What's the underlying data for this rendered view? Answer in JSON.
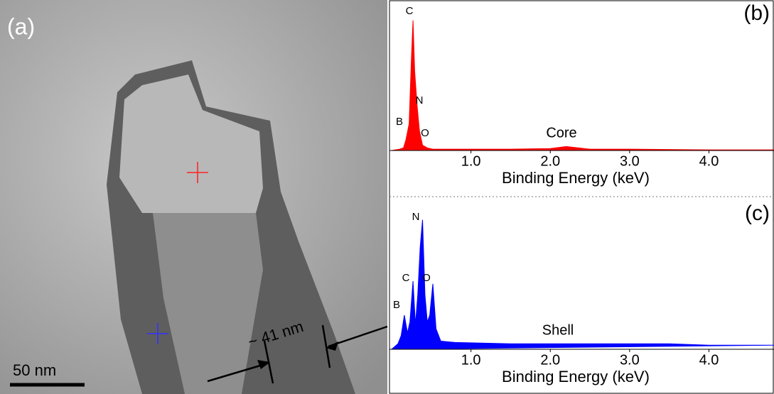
{
  "image": {
    "label": "(a)",
    "measurement": "~ 41 nm",
    "scale_bar": "50 nm"
  },
  "chart_data": [
    {
      "type": "area",
      "panel_label": "(b)",
      "spectrum_label": "Core",
      "x_label": "Binding Energy (keV)",
      "color": "#ff0000",
      "xlim": [
        0,
        4.82
      ],
      "ylim": [
        0,
        100
      ],
      "xticks": [
        {
          "value": 1,
          "label": "1.0"
        },
        {
          "value": 2,
          "label": "2.0"
        },
        {
          "value": 3,
          "label": "3.0"
        },
        {
          "value": 4,
          "label": "4.0"
        }
      ],
      "annotations": [
        {
          "text": "C"
        },
        {
          "text": "N"
        },
        {
          "text": "B"
        },
        {
          "text": "O"
        }
      ],
      "x": [
        0,
        0.1,
        0.15,
        0.18,
        0.22,
        0.25,
        0.27,
        0.29,
        0.32,
        0.35,
        0.39,
        0.45,
        0.52,
        0.6,
        1.0,
        1.5,
        2.0,
        2.2,
        2.5,
        3.0,
        4.0,
        4.82
      ],
      "values": [
        0,
        1,
        2,
        8,
        20,
        70,
        98,
        60,
        35,
        15,
        4,
        2,
        1,
        1,
        1,
        1,
        1.5,
        3,
        1,
        1,
        0.5,
        0.5
      ]
    },
    {
      "type": "area",
      "panel_label": "(c)",
      "spectrum_label": "Shell",
      "x_label": "Binding Energy (keV)",
      "color": "#0000ff",
      "xlim": [
        0,
        4.82
      ],
      "ylim": [
        0,
        100
      ],
      "xticks": [
        {
          "value": 1,
          "label": "1.0"
        },
        {
          "value": 2,
          "label": "2.0"
        },
        {
          "value": 3,
          "label": "3.0"
        },
        {
          "value": 4,
          "label": "4.0"
        }
      ],
      "annotations": [
        {
          "text": "N"
        },
        {
          "text": "C"
        },
        {
          "text": "O"
        },
        {
          "text": "B"
        }
      ],
      "x": [
        0,
        0.08,
        0.12,
        0.16,
        0.2,
        0.23,
        0.27,
        0.3,
        0.33,
        0.36,
        0.39,
        0.42,
        0.45,
        0.48,
        0.52,
        0.56,
        0.62,
        0.8,
        1.5,
        2.0,
        2.5,
        3.0,
        3.5,
        4.0,
        4.5,
        4.82
      ],
      "values": [
        0,
        4,
        10,
        25,
        12,
        20,
        50,
        18,
        40,
        75,
        95,
        40,
        20,
        25,
        48,
        15,
        6,
        5,
        4,
        4,
        4,
        4,
        4,
        3,
        3,
        3
      ]
    }
  ]
}
